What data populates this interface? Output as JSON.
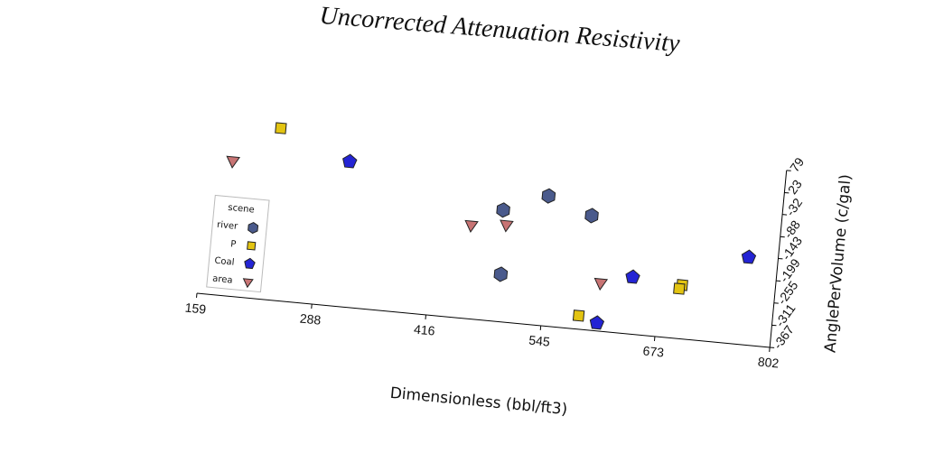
{
  "chart_data": {
    "type": "scatter",
    "title": "Uncorrected Attenuation Resistivity",
    "x_label": "Dimensionless (bbl/ft3)",
    "y_label": "AnglePerVolume (c/gal)",
    "legend_title": "scene",
    "legend": "upper left",
    "xlim": [
      159,
      802
    ],
    "xticks": [
      159,
      288,
      416,
      545,
      673,
      802
    ],
    "ylim": [
      -367,
      79
    ],
    "yticks": [
      79,
      23,
      -32,
      -88,
      -143,
      -199,
      -255,
      -311,
      -367
    ],
    "series": [
      {
        "name": "river",
        "color": "#4a5a8c",
        "marker": "hexagon",
        "x": [
          540,
          491,
          590,
          495
        ],
        "values": [
          -41,
          -87,
          -80,
          -248
        ]
      },
      {
        "name": "P",
        "color": "#e3c412",
        "marker": "square",
        "x": [
          235,
          586,
          698,
          695
        ],
        "values": [
          65,
          -333,
          -232,
          -242
        ]
      },
      {
        "name": "Coal",
        "color": "#2424d4",
        "marker": "pentagon",
        "x": [
          315,
          642,
          769,
          607
        ],
        "values": [
          -2,
          -224,
          -147,
          -347
        ]
      },
      {
        "name": "area",
        "color": "#c87474",
        "marker": "triangle_down",
        "x": [
          185,
          457,
          496,
          607
        ],
        "values": [
          -27,
          -131,
          -122,
          -245
        ]
      }
    ]
  }
}
